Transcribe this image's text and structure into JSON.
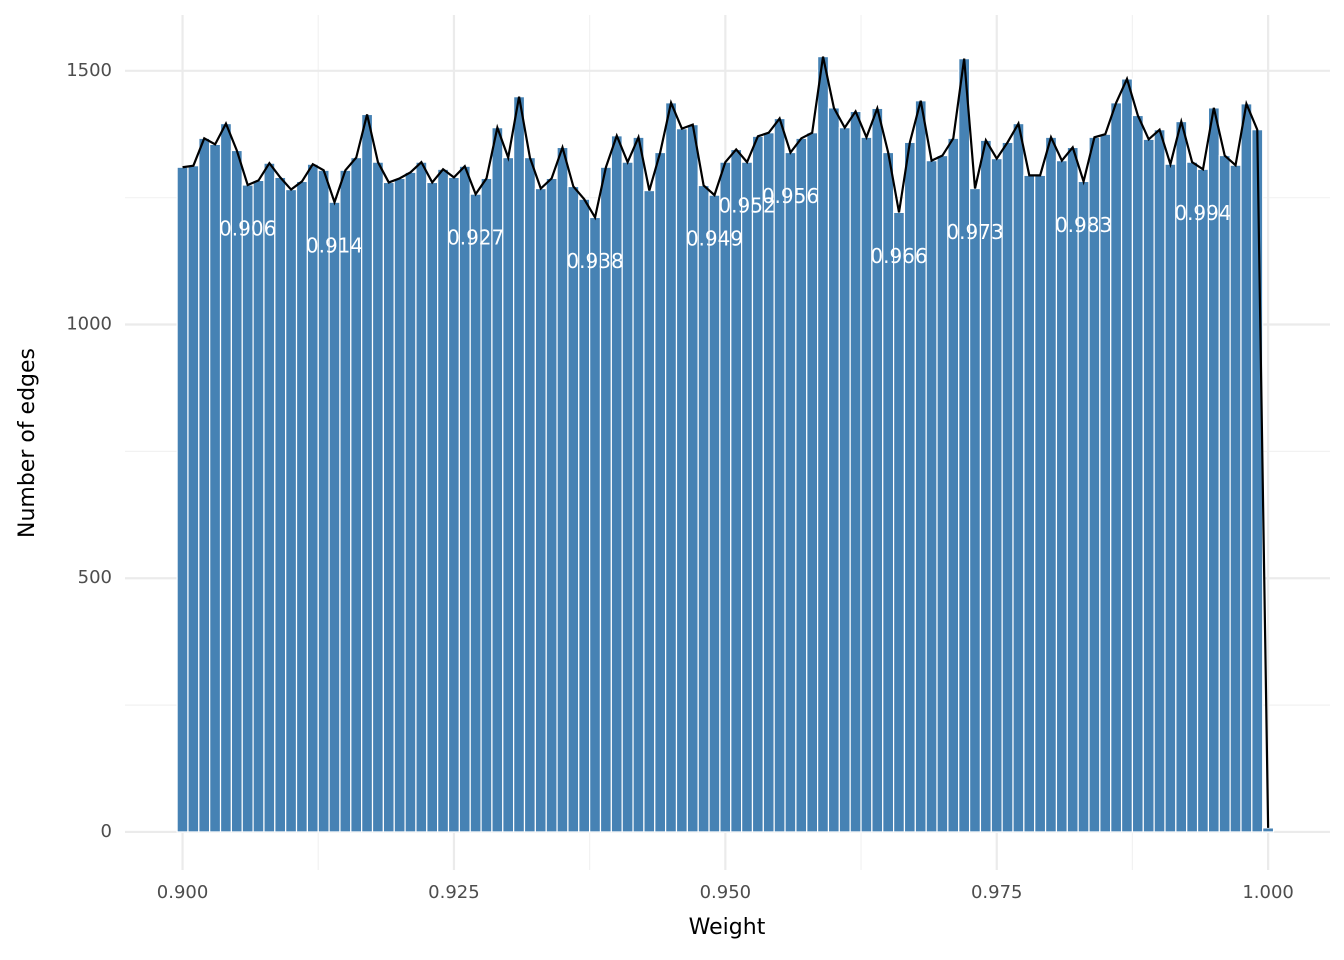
{
  "chart_data": {
    "type": "histogram",
    "x_label": "Weight",
    "y_label": "Number of edges",
    "color": "#4682b4",
    "line_color": "#000000",
    "bins": [
      0.8995,
      0.9005,
      0.9015,
      0.9025,
      0.9035,
      0.9045,
      0.9055,
      0.9065,
      0.9075,
      0.9085,
      0.9095,
      0.9105,
      0.9115,
      0.9125,
      0.9135,
      0.9145,
      0.9155,
      0.9165,
      0.9175,
      0.9185,
      0.9195,
      0.9205,
      0.9215,
      0.9225,
      0.9235,
      0.9245,
      0.9255,
      0.9265,
      0.9275,
      0.9285,
      0.9295,
      0.9305,
      0.9315,
      0.9325,
      0.9335,
      0.9345,
      0.9355,
      0.9365,
      0.9375,
      0.9385,
      0.9395,
      0.9405,
      0.9415,
      0.9425,
      0.9435,
      0.9445,
      0.9455,
      0.9465,
      0.9475,
      0.9485,
      0.9495,
      0.9505,
      0.9515,
      0.9525,
      0.9535,
      0.9545,
      0.9555,
      0.9565,
      0.9575,
      0.9585,
      0.9595,
      0.9605,
      0.9615,
      0.9625,
      0.9635,
      0.9645,
      0.9655,
      0.9665,
      0.9675,
      0.9685,
      0.9695,
      0.9705,
      0.9715,
      0.9725,
      0.9735,
      0.9745,
      0.9755,
      0.9765,
      0.9775,
      0.9785,
      0.9795,
      0.9805,
      0.9815,
      0.9825,
      0.9835,
      0.9845,
      0.9855,
      0.9865,
      0.9875,
      0.9885,
      0.9895,
      0.9905,
      0.9915,
      0.9925,
      0.9935,
      0.9945,
      0.9955,
      0.9965,
      0.9975,
      0.9985,
      0.9995,
      1.0005
    ],
    "values": [
      1310,
      1313,
      1367,
      1355,
      1396,
      1343,
      1275,
      1284,
      1318,
      1290,
      1266,
      1282,
      1316,
      1304,
      1241,
      1304,
      1329,
      1414,
      1320,
      1280,
      1288,
      1300,
      1320,
      1280,
      1306,
      1290,
      1312,
      1257,
      1288,
      1388,
      1329,
      1449,
      1329,
      1268,
      1288,
      1349,
      1272,
      1247,
      1211,
      1310,
      1372,
      1320,
      1369,
      1264,
      1339,
      1437,
      1386,
      1394,
      1274,
      1255,
      1320,
      1345,
      1320,
      1371,
      1378,
      1406,
      1339,
      1367,
      1378,
      1528,
      1427,
      1388,
      1420,
      1369,
      1426,
      1339,
      1221,
      1359,
      1441,
      1323,
      1333,
      1367,
      1524,
      1268,
      1363,
      1327,
      1359,
      1396,
      1294,
      1294,
      1369,
      1323,
      1349,
      1282,
      1369,
      1375,
      1437,
      1484,
      1412,
      1365,
      1384,
      1316,
      1400,
      1320,
      1306,
      1427,
      1333,
      1314,
      1435,
      1384,
      8
    ],
    "annotations": [
      "0.906",
      "0.914",
      "0.927",
      "0.938",
      "0.949",
      "0.952",
      "0.956",
      "0.966",
      "0.973",
      "0.983",
      "0.994"
    ],
    "xlim": [
      0.8947,
      1.0057
    ],
    "ylim": [
      -75,
      1610
    ],
    "xticks": [
      {
        "value": 0.9,
        "label": "0.900"
      },
      {
        "value": 0.925,
        "label": "0.925"
      },
      {
        "value": 0.95,
        "label": "0.950"
      },
      {
        "value": 0.975,
        "label": "0.975"
      },
      {
        "value": 1,
        "label": "1.000"
      }
    ],
    "xminorticks": [
      0.9125,
      0.9375,
      0.9625,
      0.9875
    ],
    "yticks": [
      0,
      500,
      1000,
      1500
    ],
    "yminorticks": [
      250,
      750,
      1250
    ],
    "grid": true
  }
}
